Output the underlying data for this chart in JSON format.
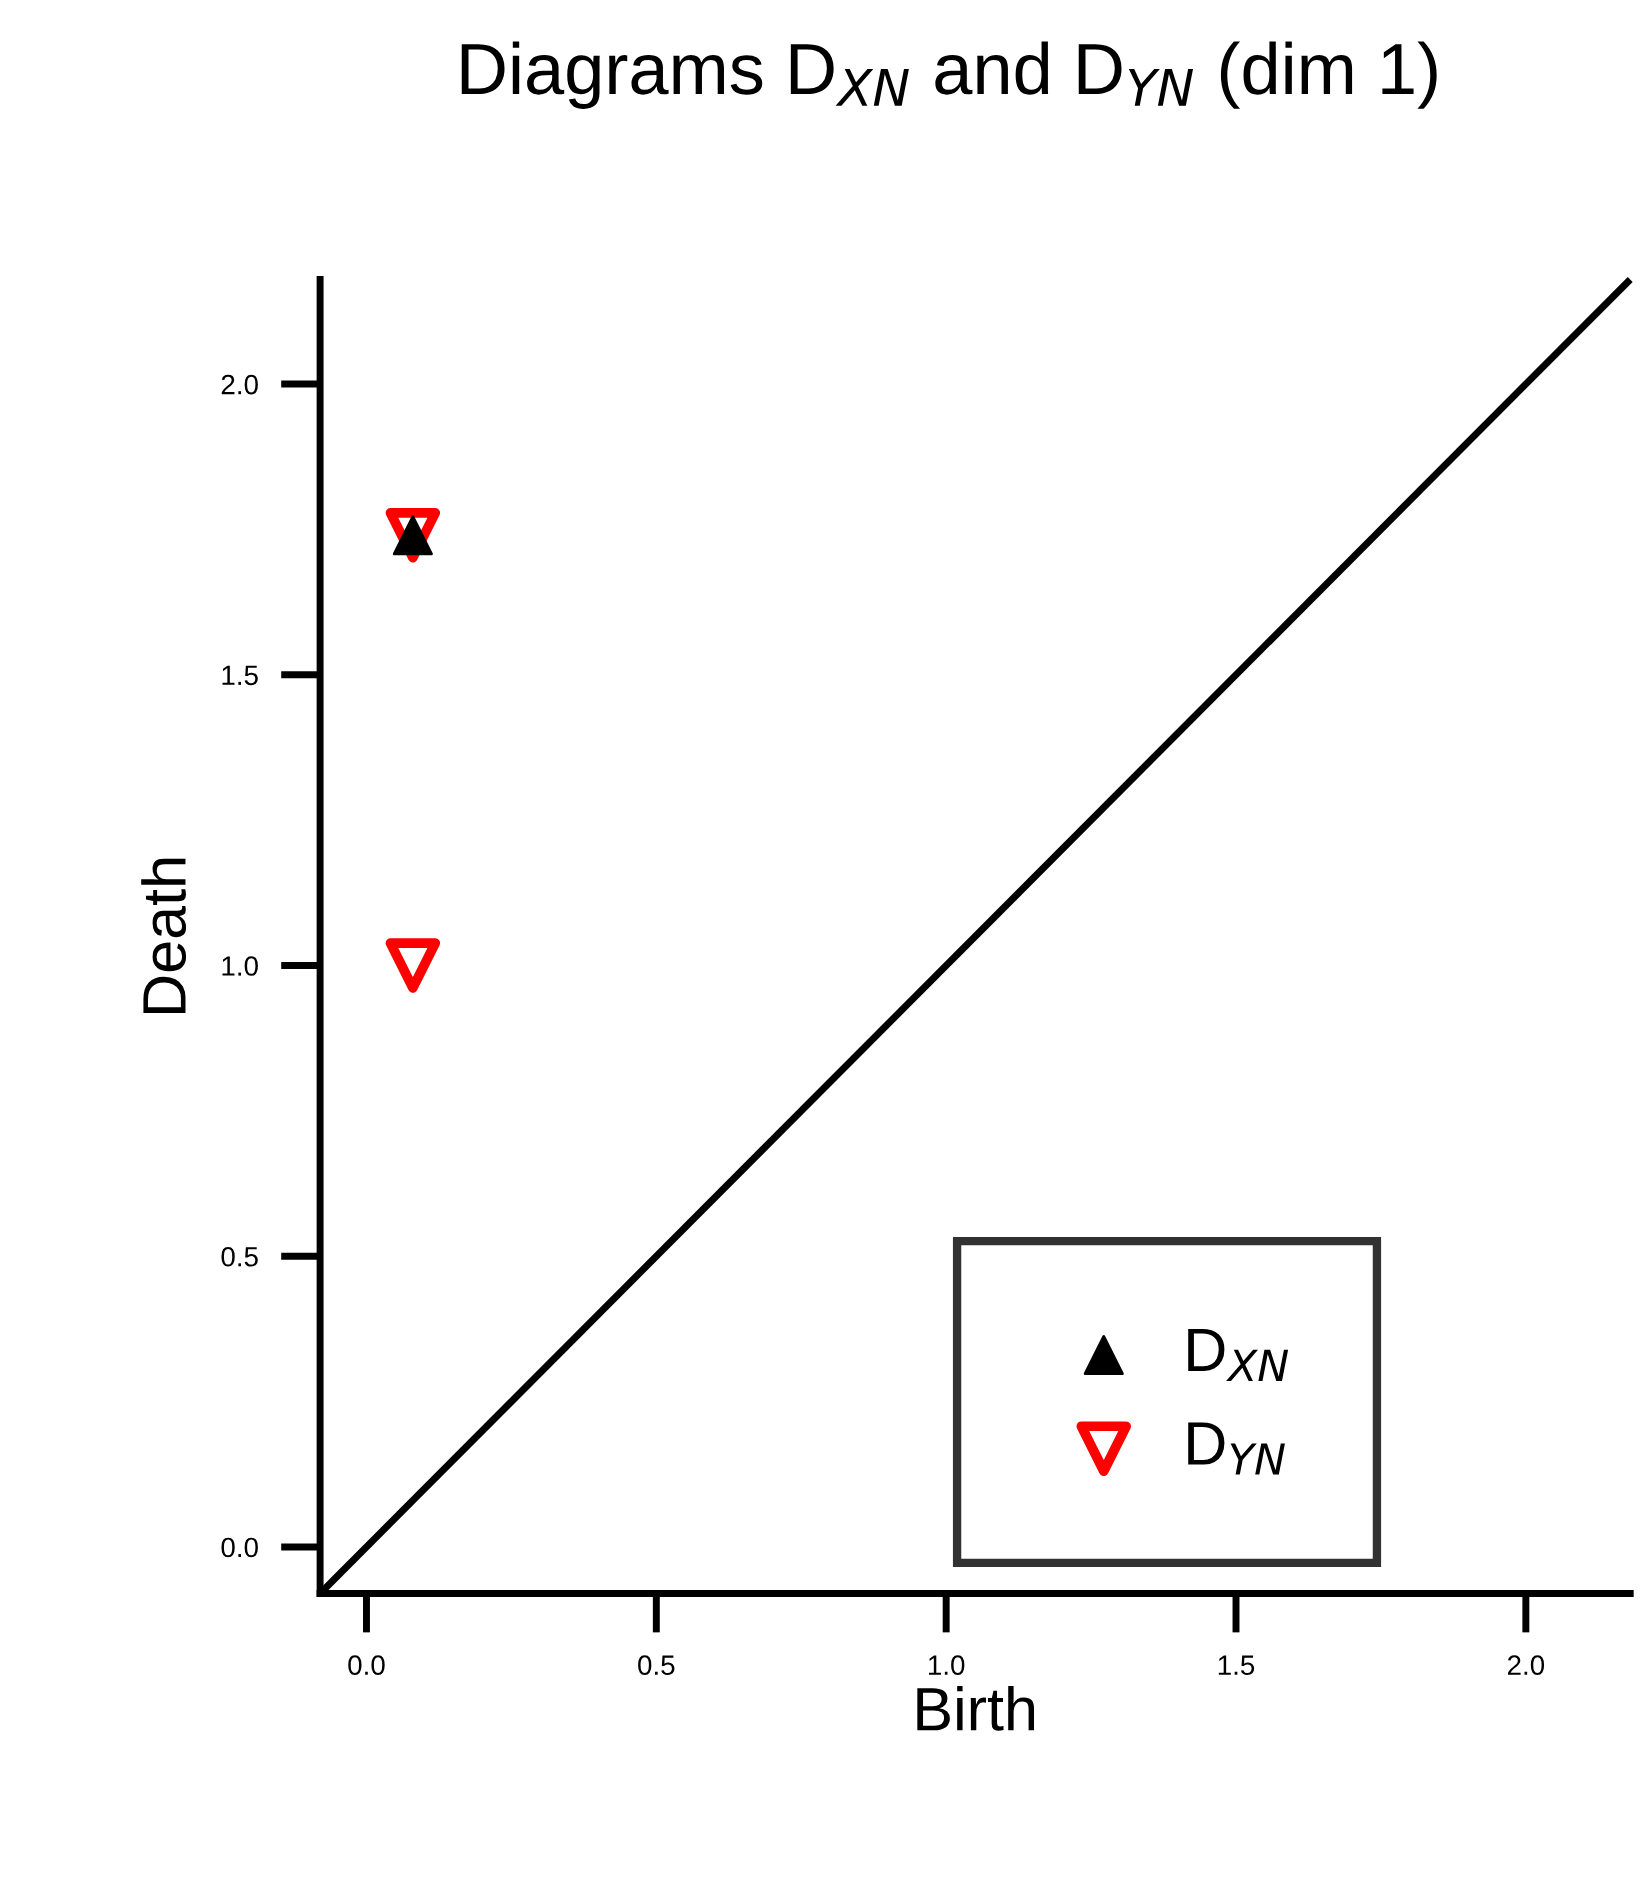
{
  "chart_data": {
    "type": "scatter",
    "title": "Diagrams D$_{XN}$ and D$_{YN}$ (dim 1)",
    "xlabel": "Birth",
    "ylabel": "Death",
    "xlim": [
      -0.08,
      2.18
    ],
    "ylim": [
      -0.08,
      2.18
    ],
    "xticks": [
      {
        "value": 0,
        "label": "0.0"
      },
      0.5,
      {
        "value": 1,
        "label": "1.0"
      },
      1.5,
      {
        "value": 2,
        "label": "2.0"
      }
    ],
    "yticks": [
      {
        "value": 0,
        "label": "0.0"
      },
      0.5,
      {
        "value": 1,
        "label": "1.0"
      },
      1.5,
      {
        "value": 2,
        "label": "2.0"
      }
    ],
    "grid": false,
    "legend": "bottom right",
    "series": [
      {
        "type": "line",
        "color": "#000000",
        "x": [
          -0.08,
          2.18
        ],
        "values": [
          -0.08,
          2.18
        ],
        "line_style": "solid",
        "marker": "none"
      },
      {
        "name": "D$_{YN}$",
        "color": "#ff0000",
        "marker": "triangle_down",
        "x": [
          0.08,
          0.08
        ],
        "values": [
          1.74,
          1.0
        ]
      },
      {
        "name": "D$_{XN}$",
        "color": "#000000",
        "marker": "triangle",
        "x": [
          0.08
        ],
        "values": [
          1.74
        ]
      }
    ]
  }
}
